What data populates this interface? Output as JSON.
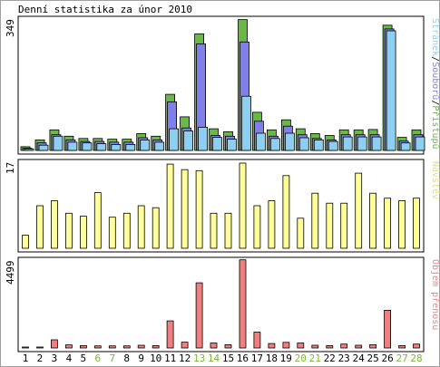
{
  "title": "Denní statistika za únor 2010",
  "colors": {
    "weekday_label": "#000000",
    "weekend_label": "#7ab82e",
    "stranky": "#8ccff0",
    "soubory": "#8080ec",
    "pristupu": "#6ab845",
    "navstevy": "#ffff99",
    "objem": "#f08080",
    "frame": "#000000",
    "border": "#a0a0a0"
  },
  "chart_data": [
    {
      "type": "bar",
      "name": "hits",
      "ymax_label": "349",
      "ylim": [
        0,
        349
      ],
      "side_label": [
        {
          "text": "Stránek",
          "color": "#8ccff0"
        },
        {
          "text": "/",
          "color": "#000000"
        },
        {
          "text": "Souborů",
          "color": "#8080ec"
        },
        {
          "text": "/",
          "color": "#000000"
        },
        {
          "text": "Přístupů",
          "color": "#6ab845"
        }
      ],
      "categories": [
        "1",
        "2",
        "3",
        "4",
        "5",
        "6",
        "7",
        "8",
        "9",
        "10",
        "11",
        "12",
        "13",
        "14",
        "15",
        "16",
        "17",
        "18",
        "19",
        "20",
        "21",
        "22",
        "23",
        "24",
        "25",
        "26",
        "27",
        "28"
      ],
      "series": [
        {
          "name": "Přístupů",
          "color": "#6ab845",
          "values": [
            10,
            28,
            55,
            38,
            32,
            32,
            30,
            30,
            45,
            38,
            150,
            90,
            312,
            58,
            50,
            350,
            102,
            55,
            82,
            58,
            45,
            40,
            55,
            55,
            56,
            335,
            35,
            55
          ]
        },
        {
          "name": "Souborů",
          "color": "#8080ec",
          "values": [
            6,
            20,
            42,
            28,
            24,
            24,
            22,
            22,
            34,
            28,
            130,
            60,
            285,
            40,
            38,
            290,
            78,
            38,
            65,
            42,
            32,
            28,
            42,
            42,
            42,
            325,
            25,
            42
          ]
        },
        {
          "name": "Stránek",
          "color": "#8ccff0",
          "values": [
            4,
            14,
            38,
            22,
            20,
            18,
            16,
            16,
            28,
            22,
            58,
            52,
            62,
            35,
            30,
            145,
            46,
            32,
            46,
            34,
            28,
            24,
            36,
            36,
            36,
            320,
            20,
            36
          ]
        }
      ]
    },
    {
      "type": "bar",
      "name": "visits",
      "ymax_label": "17",
      "ylim": [
        0,
        17
      ],
      "side_label": [
        {
          "text": "Návštěv",
          "color": "#e0e07a"
        }
      ],
      "categories": [
        "1",
        "2",
        "3",
        "4",
        "5",
        "6",
        "7",
        "8",
        "9",
        "10",
        "11",
        "12",
        "13",
        "14",
        "15",
        "16",
        "17",
        "18",
        "19",
        "20",
        "21",
        "22",
        "23",
        "24",
        "25",
        "26",
        "27",
        "28"
      ],
      "series": [
        {
          "name": "Návštěv",
          "color": "#ffff99",
          "values": [
            2.6,
            8.5,
            9.5,
            7.0,
            6.4,
            11.1,
            6.2,
            7.0,
            8.5,
            8.1,
            16.8,
            15.7,
            15.5,
            7.0,
            7.0,
            17.0,
            8.5,
            9.5,
            14.5,
            6.0,
            11.0,
            9.0,
            9.0,
            15.0,
            11.0,
            10.0,
            9.5,
            10.0
          ]
        }
      ]
    },
    {
      "type": "bar",
      "name": "volume",
      "ymax_label": "4499",
      "ylim": [
        0,
        4499
      ],
      "side_label": [
        {
          "text": "Objem přenosu",
          "color": "#f08080"
        }
      ],
      "categories": [
        "1",
        "2",
        "3",
        "4",
        "5",
        "6",
        "7",
        "8",
        "9",
        "10",
        "11",
        "12",
        "13",
        "14",
        "15",
        "16",
        "17",
        "18",
        "19",
        "20",
        "21",
        "22",
        "23",
        "24",
        "25",
        "26",
        "27",
        "28"
      ],
      "series": [
        {
          "name": "Objem přenosu",
          "color": "#f08080",
          "values": [
            30,
            45,
            420,
            160,
            120,
            110,
            110,
            110,
            140,
            120,
            1400,
            300,
            3370,
            260,
            170,
            4560,
            820,
            230,
            290,
            260,
            140,
            120,
            200,
            140,
            170,
            1950,
            120,
            200
          ]
        }
      ]
    }
  ],
  "x_axis": {
    "labels": [
      "1",
      "2",
      "3",
      "4",
      "5",
      "6",
      "7",
      "8",
      "9",
      "10",
      "11",
      "12",
      "13",
      "14",
      "15",
      "16",
      "17",
      "18",
      "19",
      "20",
      "21",
      "22",
      "23",
      "24",
      "25",
      "26",
      "27",
      "28"
    ],
    "weekend": [
      false,
      false,
      false,
      false,
      false,
      true,
      true,
      false,
      false,
      false,
      false,
      false,
      true,
      true,
      false,
      false,
      false,
      false,
      false,
      true,
      true,
      false,
      false,
      false,
      false,
      false,
      true,
      true
    ]
  }
}
